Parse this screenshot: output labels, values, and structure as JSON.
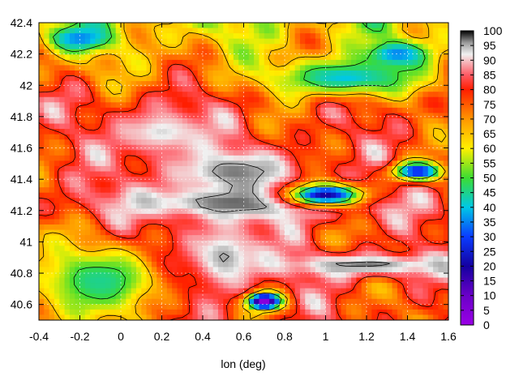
{
  "chart_data": {
    "type": "heatmap",
    "title": "",
    "xlabel": "lon (deg)",
    "ylabel": "",
    "xlim": [
      -0.4,
      1.6
    ],
    "ylim": [
      40.5,
      42.4
    ],
    "x_ticks": [
      -0.4,
      -0.2,
      0,
      0.2,
      0.4,
      0.6,
      0.8,
      1,
      1.2,
      1.4,
      1.6
    ],
    "x_tick_labels": [
      "-0.4",
      "-0.2",
      "0",
      "0.2",
      "0.4",
      "0.6",
      "0.8",
      "1",
      "1.2",
      "1.4",
      "1.6"
    ],
    "y_ticks": [
      40.6,
      40.8,
      41,
      41.2,
      41.4,
      41.6,
      41.8,
      42,
      42.2,
      42.4
    ],
    "y_tick_labels": [
      "40.6",
      "40.8",
      "41",
      "41.2",
      "41.4",
      "41.6",
      "41.8",
      "42",
      "42.2",
      "42.4"
    ],
    "colorbar": {
      "min": 0,
      "max": 100,
      "ticks": [
        0,
        5,
        10,
        15,
        20,
        25,
        30,
        35,
        40,
        45,
        50,
        55,
        60,
        65,
        70,
        75,
        80,
        85,
        90,
        95,
        100
      ],
      "tick_labels": [
        "0",
        "5",
        "10",
        "15",
        "20",
        "25",
        "30",
        "35",
        "40",
        "45",
        "50",
        "55",
        "60",
        "65",
        "70",
        "75",
        "80",
        "85",
        "90",
        "95",
        "100"
      ],
      "colormap": [
        [
          0,
          "#9a00e6"
        ],
        [
          10,
          "#6a00c8"
        ],
        [
          20,
          "#1400a0"
        ],
        [
          30,
          "#0a3cff"
        ],
        [
          40,
          "#00c8e6"
        ],
        [
          50,
          "#3cdc32"
        ],
        [
          60,
          "#fff000"
        ],
        [
          70,
          "#ff9600"
        ],
        [
          80,
          "#ff1e00"
        ],
        [
          85,
          "#ff5a64"
        ],
        [
          92,
          "#f0f0f0"
        ],
        [
          96,
          "#9a9a9a"
        ],
        [
          100,
          "#000000"
        ]
      ]
    },
    "grid": true,
    "contours": true,
    "field_features": [
      {
        "kind": "high",
        "lon": 0.6,
        "lat": 41.25,
        "value": 98,
        "spread_lon": 0.7,
        "spread_lat": 0.12
      },
      {
        "kind": "high",
        "lon": 0.55,
        "lat": 41.45,
        "value": 97,
        "spread_lon": 0.35,
        "spread_lat": 0.15
      },
      {
        "kind": "high",
        "lon": 0.2,
        "lat": 41.7,
        "value": 93,
        "spread_lon": 0.25,
        "spread_lat": 0.18
      },
      {
        "kind": "high",
        "lon": 0.5,
        "lat": 40.9,
        "value": 96,
        "spread_lon": 0.2,
        "spread_lat": 0.25
      },
      {
        "kind": "high",
        "lon": 1.2,
        "lat": 40.85,
        "value": 97,
        "spread_lon": 0.45,
        "spread_lat": 0.08
      },
      {
        "kind": "low",
        "lon": 1.0,
        "lat": 41.3,
        "value": 20,
        "spread_lon": 0.18,
        "spread_lat": 0.07
      },
      {
        "kind": "low",
        "lon": 1.45,
        "lat": 41.45,
        "value": 25,
        "spread_lon": 0.12,
        "spread_lat": 0.06
      },
      {
        "kind": "low",
        "lon": 1.1,
        "lat": 42.05,
        "value": 40,
        "spread_lon": 0.35,
        "spread_lat": 0.12
      },
      {
        "kind": "low",
        "lon": 1.35,
        "lat": 42.2,
        "value": 35,
        "spread_lon": 0.15,
        "spread_lat": 0.08
      },
      {
        "kind": "low",
        "lon": -0.2,
        "lat": 42.3,
        "value": 35,
        "spread_lon": 0.15,
        "spread_lat": 0.08
      },
      {
        "kind": "low",
        "lon": -0.1,
        "lat": 40.75,
        "value": 45,
        "spread_lon": 0.3,
        "spread_lat": 0.2
      },
      {
        "kind": "low",
        "lon": 0.7,
        "lat": 40.62,
        "value": 2,
        "spread_lon": 0.08,
        "spread_lat": 0.05
      }
    ]
  }
}
